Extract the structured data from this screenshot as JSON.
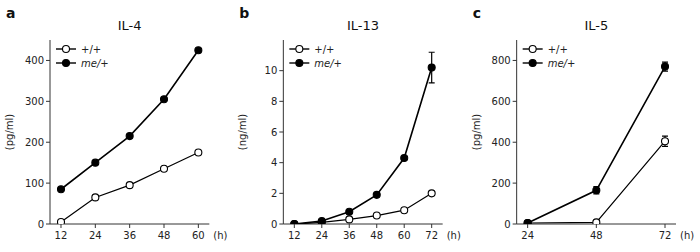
{
  "chart_data": [
    {
      "type": "line",
      "title": "IL-4",
      "annotations": [
        "a"
      ],
      "xlabel": "(h)",
      "ylabel": "(pg/ml)",
      "x": [
        12,
        24,
        36,
        48,
        60
      ],
      "xlim": [
        8.16,
        63.84
      ],
      "xticks": [
        12,
        24,
        36,
        48,
        60
      ],
      "ylim": [
        0,
        450
      ],
      "yticks": [
        0,
        100,
        200,
        300,
        400
      ],
      "grid": false,
      "legend": "upper left",
      "series": [
        {
          "name": "+/+",
          "color": "black",
          "marker": "open-circle",
          "values": [
            5,
            65,
            95,
            135,
            175
          ],
          "errors": [
            0,
            0,
            0,
            0,
            0
          ]
        },
        {
          "name": "me/+",
          "color": "black",
          "marker": "circle",
          "values": [
            85,
            150,
            215,
            305,
            425
          ],
          "errors": [
            0,
            0,
            0,
            0,
            0
          ]
        }
      ]
    },
    {
      "type": "line",
      "title": "IL-13",
      "annotations": [
        "b"
      ],
      "xlabel": "(h)",
      "ylabel": "(ng/ml)",
      "x": [
        12,
        24,
        36,
        48,
        60,
        72
      ],
      "xlim": [
        7.2,
        76.8
      ],
      "xticks": [
        12,
        24,
        36,
        48,
        60,
        72
      ],
      "ylim": [
        0,
        12
      ],
      "yticks": [
        0,
        2,
        4,
        6,
        8,
        10
      ],
      "grid": false,
      "legend": "upper left",
      "series": [
        {
          "name": "+/+",
          "color": "black",
          "marker": "open-circle",
          "values": [
            0.0,
            0.1,
            0.3,
            0.55,
            0.9,
            2.0
          ],
          "errors": [
            0,
            0,
            0,
            0,
            0,
            0
          ]
        },
        {
          "name": "me/+",
          "color": "black",
          "marker": "circle",
          "values": [
            0.0,
            0.2,
            0.8,
            1.9,
            4.3,
            10.2
          ],
          "errors": [
            0,
            0,
            0,
            0,
            0,
            1.0
          ]
        }
      ]
    },
    {
      "type": "line",
      "title": "IL-5",
      "annotations": [
        "c"
      ],
      "xlabel": "(h)",
      "ylabel": "(pg/ml)",
      "x": [
        24,
        48,
        72
      ],
      "xlim": [
        20.16,
        75.84
      ],
      "xticks": [
        24,
        48,
        72
      ],
      "ylim": [
        0,
        900
      ],
      "yticks": [
        0,
        200,
        400,
        600,
        800
      ],
      "grid": false,
      "legend": "upper left",
      "series": [
        {
          "name": "+/+",
          "color": "black",
          "marker": "open-circle",
          "values": [
            5,
            8,
            405
          ],
          "errors": [
            0,
            0,
            25
          ]
        },
        {
          "name": "me/+",
          "color": "black",
          "marker": "circle",
          "values": [
            5,
            165,
            770
          ],
          "errors": [
            0,
            18,
            22
          ]
        }
      ]
    }
  ]
}
